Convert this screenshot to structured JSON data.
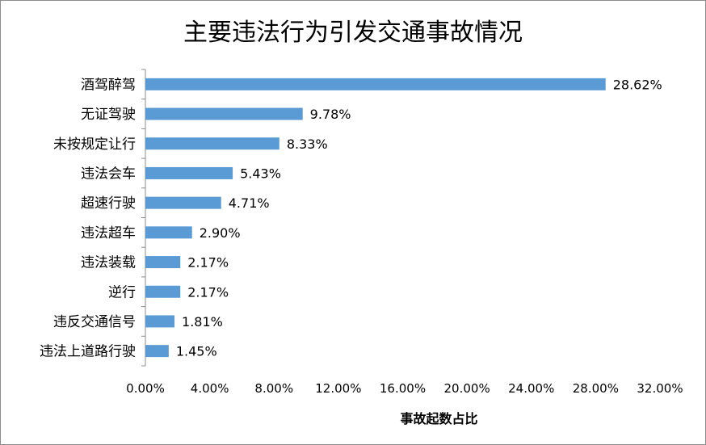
{
  "chart_data": {
    "type": "bar",
    "orientation": "horizontal",
    "title": "主要违法行为引发交通事故情况",
    "xlabel": "事故起数占比",
    "ylabel": "",
    "xlim": [
      0,
      32
    ],
    "x_ticks": [
      "0.00%",
      "4.00%",
      "8.00%",
      "12.00%",
      "16.00%",
      "20.00%",
      "24.00%",
      "28.00%",
      "32.00%"
    ],
    "grid": false,
    "legend": "none",
    "bar_color": "#5b9bd5",
    "categories": [
      "酒驾醉驾",
      "无证驾驶",
      "未按规定让行",
      "违法会车",
      "超速行驶",
      "违法超车",
      "违法装载",
      "逆行",
      "违反交通信号",
      "违法上道路行驶"
    ],
    "values": [
      28.62,
      9.78,
      8.33,
      5.43,
      4.71,
      2.9,
      2.17,
      2.17,
      1.81,
      1.45
    ],
    "value_labels": [
      "28.62%",
      "9.78%",
      "8.33%",
      "5.43%",
      "4.71%",
      "2.90%",
      "2.17%",
      "2.17%",
      "1.81%",
      "1.45%"
    ]
  }
}
